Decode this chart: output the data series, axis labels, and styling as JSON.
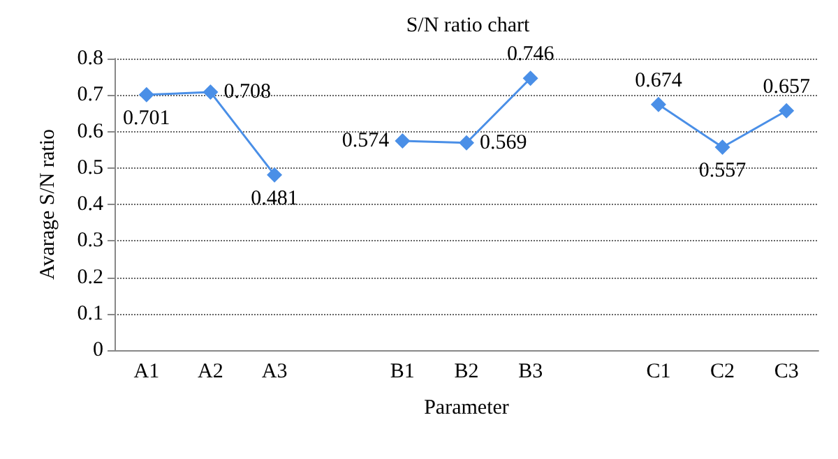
{
  "chart_data": {
    "type": "line",
    "title": "S/N ratio chart",
    "xlabel": "Parameter",
    "ylabel": "Avarage S/N ratio",
    "categories": [
      "A1",
      "A2",
      "A3",
      null,
      "B1",
      "B2",
      "B3",
      null,
      "C1",
      "C2",
      "C3"
    ],
    "series": [
      {
        "color": "#4a8fe7",
        "values": [
          0.701,
          0.708,
          0.481,
          null,
          0.574,
          0.569,
          0.746,
          null,
          0.674,
          0.557,
          0.657
        ]
      }
    ],
    "ylim": [
      0,
      0.8
    ],
    "yticks": [
      0,
      0.1,
      0.2,
      0.3,
      0.4,
      0.5,
      0.6,
      0.7,
      0.8
    ],
    "grid": "y",
    "marker": "diamond",
    "line_style": "solid",
    "data_labels": true
  }
}
